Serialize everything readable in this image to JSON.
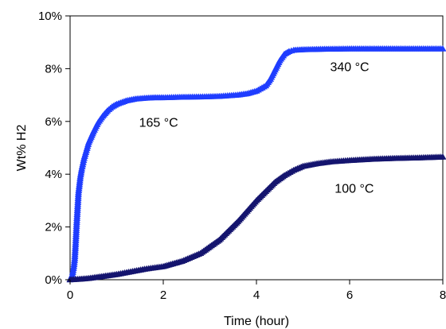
{
  "chart_data": {
    "type": "scatter",
    "title": "",
    "xlabel": "Time (hour)",
    "ylabel": "Wt% H2",
    "xlim": [
      0,
      8
    ],
    "ylim": [
      0,
      10
    ],
    "grid": false,
    "legend": "none",
    "x_ticks": [
      "0",
      "2",
      "4",
      "6",
      "8"
    ],
    "y_ticks": [
      "0%",
      "2%",
      "4%",
      "6%",
      "8%",
      "10%"
    ],
    "series": [
      {
        "color": "#1f3dff",
        "marker": "triangle",
        "x": [
          0.0,
          0.05,
          0.08,
          0.1,
          0.12,
          0.14,
          0.16,
          0.18,
          0.2,
          0.22,
          0.25,
          0.3,
          0.35,
          0.4,
          0.5,
          0.6,
          0.7,
          0.8,
          0.9,
          1.0,
          1.2,
          1.4,
          1.6,
          1.8,
          2.0,
          2.4,
          2.8,
          3.2,
          3.6,
          3.8,
          4.0,
          4.2,
          4.3,
          4.4,
          4.5,
          4.6,
          4.7,
          4.8,
          5.0,
          5.5,
          6.0,
          6.5,
          7.0,
          7.5,
          8.0
        ],
        "y": [
          0.0,
          0.2,
          0.5,
          0.8,
          1.4,
          2.1,
          2.7,
          3.3,
          3.6,
          3.9,
          4.2,
          4.6,
          4.9,
          5.2,
          5.6,
          5.95,
          6.2,
          6.4,
          6.55,
          6.65,
          6.78,
          6.85,
          6.88,
          6.9,
          6.9,
          6.92,
          6.93,
          6.95,
          7.0,
          7.05,
          7.15,
          7.35,
          7.6,
          7.95,
          8.3,
          8.55,
          8.65,
          8.7,
          8.72,
          8.74,
          8.75,
          8.75,
          8.75,
          8.75,
          8.75
        ]
      },
      {
        "color": "#14146e",
        "marker": "triangle",
        "x": [
          0.0,
          0.2,
          0.4,
          0.6,
          0.8,
          1.0,
          1.3,
          1.6,
          2.0,
          2.4,
          2.8,
          3.0,
          3.2,
          3.4,
          3.6,
          3.8,
          4.0,
          4.2,
          4.4,
          4.6,
          4.8,
          5.0,
          5.3,
          5.6,
          6.0,
          6.5,
          7.0,
          7.5,
          8.0
        ],
        "y": [
          0.0,
          0.02,
          0.05,
          0.1,
          0.15,
          0.2,
          0.3,
          0.4,
          0.5,
          0.7,
          1.0,
          1.25,
          1.5,
          1.85,
          2.2,
          2.6,
          3.0,
          3.35,
          3.7,
          3.95,
          4.15,
          4.3,
          4.4,
          4.47,
          4.52,
          4.57,
          4.6,
          4.62,
          4.65
        ]
      }
    ],
    "annotations": [
      {
        "text": "165 °C",
        "x": 1.9,
        "y": 5.8
      },
      {
        "text": "340 °C",
        "x": 6.0,
        "y": 7.9
      },
      {
        "text": "100 °C",
        "x": 6.1,
        "y": 3.3
      }
    ]
  }
}
